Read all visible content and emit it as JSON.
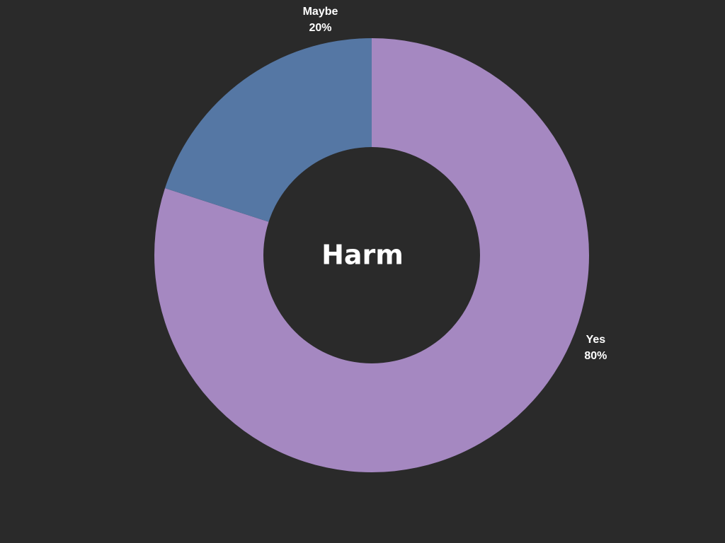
{
  "chart_data": {
    "type": "pie",
    "title": "Harm",
    "categories": [
      "Yes",
      "Maybe"
    ],
    "values": [
      80,
      20
    ],
    "value_labels": [
      "80%",
      "20%"
    ],
    "colors": [
      "#a588c1",
      "#5577a4"
    ],
    "background": "#2a2a2a",
    "donut": true,
    "start": "top",
    "direction": "clockwise"
  }
}
